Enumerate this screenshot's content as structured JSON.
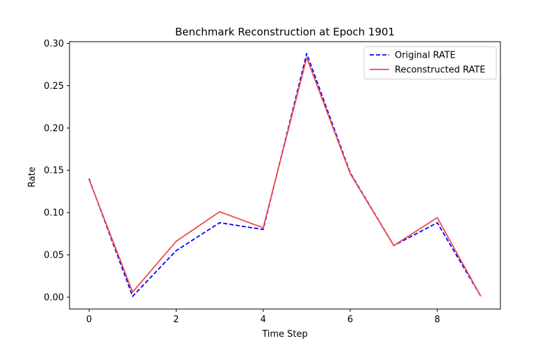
{
  "chart_data": {
    "type": "line",
    "title": "Benchmark Reconstruction at Epoch 1901",
    "xlabel": "Time Step",
    "ylabel": "Rate",
    "x": [
      0,
      1,
      2,
      3,
      4,
      5,
      6,
      7,
      8,
      9
    ],
    "xlim": [
      -0.45,
      9.45
    ],
    "ylim": [
      -0.014,
      0.302
    ],
    "xticks": [
      0,
      2,
      4,
      6,
      8
    ],
    "yticks": [
      0.0,
      0.05,
      0.1,
      0.15,
      0.2,
      0.25,
      0.3
    ],
    "ytick_labels": [
      "0.00",
      "0.05",
      "0.10",
      "0.15",
      "0.20",
      "0.25",
      "0.30"
    ],
    "grid": false,
    "legend_position": "top-right",
    "series": [
      {
        "name": "Original RATE",
        "values": [
          0.14,
          0.001,
          0.055,
          0.088,
          0.08,
          0.288,
          0.147,
          0.061,
          0.088,
          0.001
        ],
        "color": "#0000ff",
        "style": "dashed"
      },
      {
        "name": "Reconstructed RATE",
        "values": [
          0.139,
          0.006,
          0.066,
          0.101,
          0.082,
          0.283,
          0.146,
          0.061,
          0.094,
          0.001
        ],
        "color": "#f24a4a",
        "style": "solid"
      }
    ]
  }
}
